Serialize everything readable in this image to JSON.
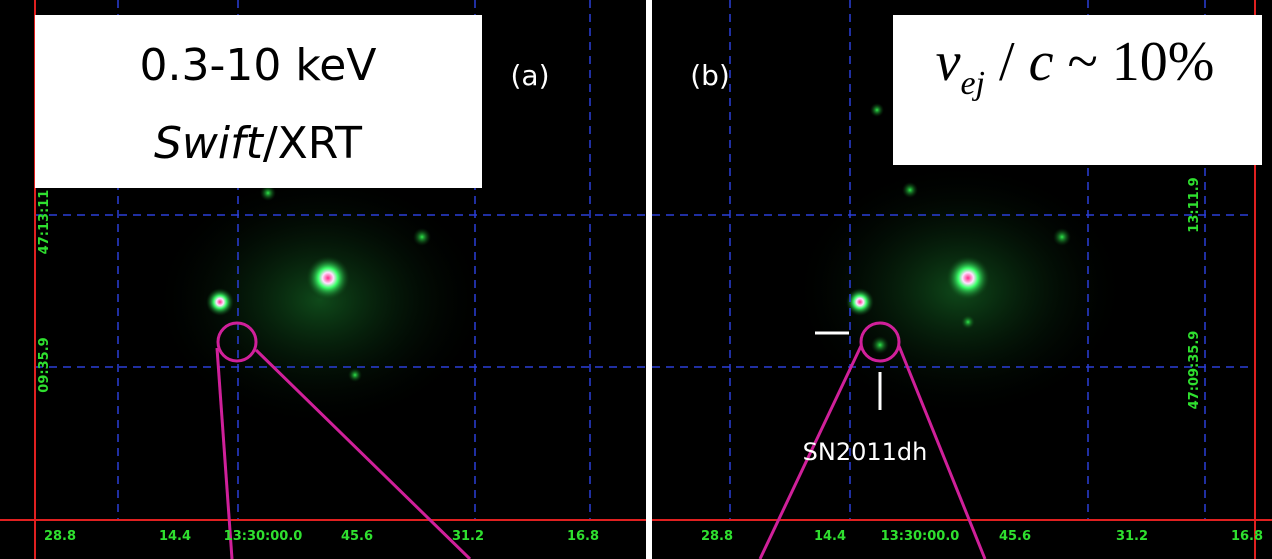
{
  "panels": [
    {
      "label": "(a)",
      "x_ticks": [
        "28.8",
        "14.4",
        "13:30:00.0",
        "45.6",
        "31.2",
        "16.8"
      ],
      "y_ticks": [
        "47:13:11",
        "09:35.9"
      ]
    },
    {
      "label": "(b)",
      "x_ticks": [
        "28.8",
        "14.4",
        "13:30:00.0",
        "45.6",
        "31.2",
        "16.8"
      ],
      "y_ticks": [
        "13:11.9",
        "47:09:35.9"
      ],
      "source_label": "SN2011dh"
    }
  ],
  "energy_box": {
    "line1": "0.3-10 keV",
    "italic": "Swift",
    "rest": "/XRT"
  },
  "velocity_box": {
    "v": "v",
    "sub": "ej",
    "slash": " / ",
    "c": "c",
    "rest": " ~ 10%"
  }
}
